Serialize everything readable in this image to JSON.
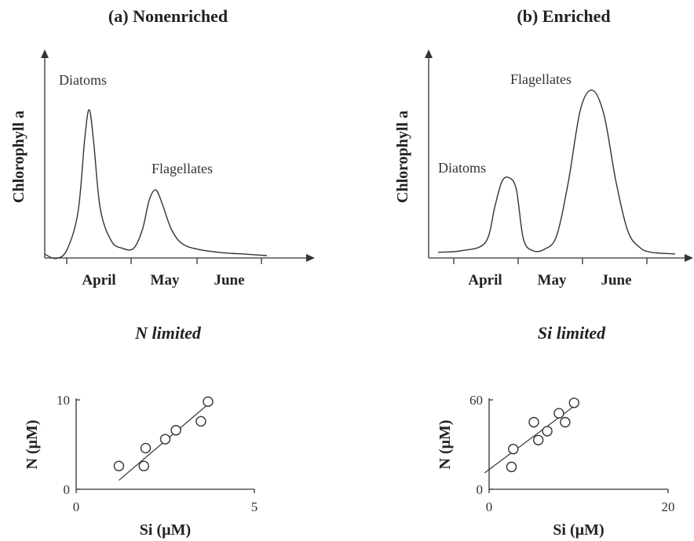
{
  "panels": [
    {
      "title": "(a) Nonenriched",
      "ylabel": "Chlorophyll a",
      "months": [
        "April",
        "May",
        "June"
      ],
      "annotations": [
        "Diatoms",
        "Flagellates"
      ],
      "subtitle": "N limited"
    },
    {
      "title": "(b) Enriched",
      "ylabel": "Chlorophyll a",
      "months": [
        "April",
        "May",
        "June"
      ],
      "annotations": [
        "Diatoms",
        "Flagellates"
      ],
      "subtitle": "Si limited"
    }
  ],
  "chart_data": [
    {
      "type": "line",
      "title": "(a) Nonenriched",
      "ylabel": "Chlorophyll a",
      "xlabel": "",
      "x_ticks": [
        "April",
        "May",
        "June"
      ],
      "x": [
        0,
        0.05,
        0.1,
        0.15,
        0.18,
        0.2,
        0.22,
        0.25,
        0.3,
        0.35,
        0.4,
        0.44,
        0.47,
        0.5,
        0.53,
        0.57,
        0.62,
        0.7,
        0.8,
        0.9,
        1.0
      ],
      "values": [
        0.01,
        -0.02,
        0.04,
        0.3,
        0.8,
        1.0,
        0.78,
        0.32,
        0.1,
        0.05,
        0.05,
        0.18,
        0.38,
        0.45,
        0.35,
        0.18,
        0.08,
        0.04,
        0.02,
        0.01,
        0.0
      ],
      "series_labels": [
        "Diatoms",
        "Flagellates"
      ],
      "ylim": [
        -0.05,
        1.1
      ]
    },
    {
      "type": "line",
      "title": "(b) Enriched",
      "ylabel": "Chlorophyll a",
      "xlabel": "",
      "x_ticks": [
        "April",
        "May",
        "June"
      ],
      "x": [
        0,
        0.1,
        0.2,
        0.24,
        0.27,
        0.3,
        0.33,
        0.36,
        0.4,
        0.45,
        0.5,
        0.55,
        0.6,
        0.65,
        0.7,
        0.75,
        0.8,
        0.85,
        0.9,
        1.0
      ],
      "values": [
        0.02,
        0.03,
        0.08,
        0.3,
        0.45,
        0.47,
        0.4,
        0.1,
        0.03,
        0.04,
        0.12,
        0.45,
        0.88,
        1.0,
        0.85,
        0.45,
        0.15,
        0.05,
        0.02,
        0.01
      ],
      "series_labels": [
        "Diatoms",
        "Flagellates"
      ],
      "ylim": [
        -0.05,
        1.1
      ]
    },
    {
      "type": "scatter",
      "title": "N limited",
      "xlabel": "Si (µM)",
      "ylabel": "N (µM)",
      "xlim": [
        0,
        5
      ],
      "ylim": [
        0,
        10
      ],
      "x_ticks": [
        "0",
        "5"
      ],
      "y_ticks": [
        "0",
        "10"
      ],
      "x": [
        1.2,
        1.9,
        1.95,
        2.5,
        2.8,
        3.5,
        3.7
      ],
      "y": [
        2.6,
        2.6,
        4.6,
        5.6,
        6.6,
        7.6,
        9.8
      ],
      "fit_line": {
        "x": [
          1.2,
          3.7
        ],
        "y": [
          1.0,
          9.5
        ]
      }
    },
    {
      "type": "scatter",
      "title": "Si limited",
      "xlabel": "Si (µM)",
      "ylabel": "N (µM)",
      "xlim": [
        0,
        20
      ],
      "ylim": [
        0,
        60
      ],
      "x_ticks": [
        "0",
        "20"
      ],
      "y_ticks": [
        "0",
        "60"
      ],
      "x": [
        2.5,
        2.7,
        5.0,
        5.5,
        6.5,
        7.8,
        8.5,
        9.5
      ],
      "y": [
        15,
        27,
        45,
        33,
        39,
        51,
        45,
        58
      ],
      "fit_line": {
        "x": [
          -0.5,
          10
        ],
        "y": [
          11,
          58
        ]
      }
    }
  ]
}
